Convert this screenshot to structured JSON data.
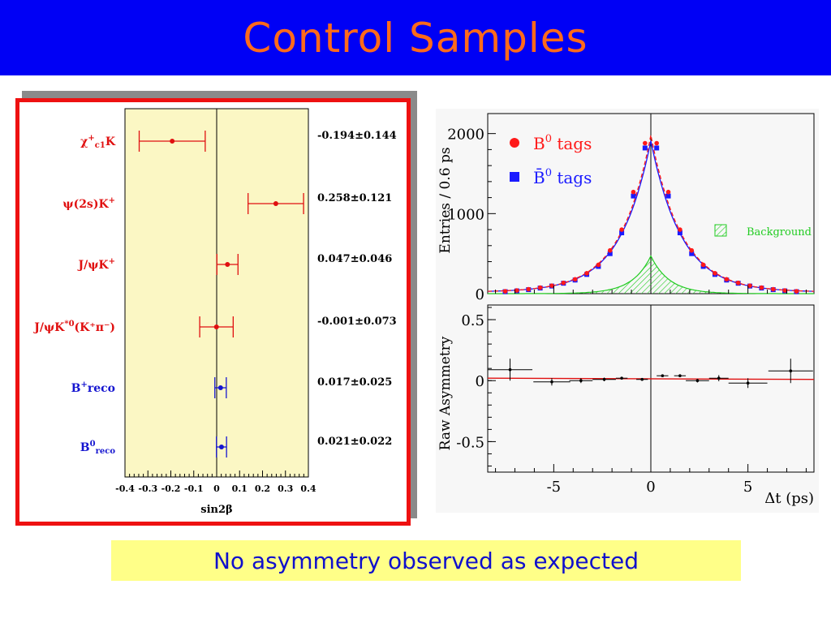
{
  "title": "Control Samples",
  "caption": "No asymmetry observed as expected",
  "chart_data": [
    {
      "type": "scatter",
      "xlabel": "sin2β",
      "xlim": [
        -0.4,
        0.4
      ],
      "xticks": [
        "-0.4",
        "-0.3",
        "-0.2",
        "-0.1",
        "0",
        "0.1",
        "0.2",
        "0.3",
        "0.4"
      ],
      "colors": {
        "red": "#e01010",
        "blue": "#1515d0",
        "band": "#fbf7c4"
      },
      "rows": [
        {
          "label_main": "χ",
          "label_sub": "c1",
          "label_rest": "K",
          "label_sup": "+",
          "color": "red",
          "value": -0.194,
          "error": 0.144,
          "value_text": "-0.194±0.144"
        },
        {
          "label_main": "ψ(2s)K",
          "label_sub": "",
          "label_rest": "",
          "label_sup": "+",
          "color": "red",
          "value": 0.258,
          "error": 0.121,
          "value_text": "0.258±0.121"
        },
        {
          "label_main": "J/ψK",
          "label_sub": "",
          "label_rest": "",
          "label_sup": "+",
          "color": "red",
          "value": 0.047,
          "error": 0.046,
          "value_text": "0.047±0.046"
        },
        {
          "label_main": "J/ψK",
          "label_sub": "",
          "label_rest": "",
          "label_sup": "*0",
          "label_tail": "(K⁺π⁻)",
          "color": "red",
          "value": -0.001,
          "error": 0.073,
          "value_text": "-0.001±0.073"
        },
        {
          "label_main": "B",
          "label_sub": "",
          "label_rest": "reco",
          "label_sup": "+",
          "color": "blue",
          "value": 0.017,
          "error": 0.025,
          "value_text": "0.017±0.025"
        },
        {
          "label_main": "B",
          "label_sub": "reco",
          "label_rest": "",
          "label_sup": "0",
          "color": "blue",
          "value": 0.021,
          "error": 0.022,
          "value_text": "0.021±0.022"
        }
      ]
    },
    {
      "type": "scatter",
      "ylabel": "Entries / 0.6 ps",
      "ylim": [
        0,
        2250
      ],
      "yticks": [
        "0",
        "1000",
        "2000"
      ],
      "xlim": [
        -8.4,
        8.4
      ],
      "legend": {
        "placement": "top-left",
        "b0": "B",
        "b0_sup": "0",
        "b0_text": "tags",
        "b0bar": "B̄",
        "b0bar_sup": "0",
        "b0bar_text": "tags",
        "background": "Background"
      },
      "x": [
        -7.5,
        -6.9,
        -6.3,
        -5.7,
        -5.1,
        -4.5,
        -3.9,
        -3.3,
        -2.7,
        -2.1,
        -1.5,
        -0.9,
        -0.3,
        0.3,
        0.9,
        1.5,
        2.1,
        2.7,
        3.3,
        3.9,
        4.5,
        5.1,
        5.7,
        6.3,
        6.9,
        7.5
      ],
      "series": [
        {
          "name": "B0 tags",
          "values": [
            30,
            40,
            55,
            75,
            100,
            135,
            180,
            255,
            360,
            540,
            800,
            1270,
            1880,
            1880,
            1270,
            800,
            540,
            360,
            255,
            180,
            135,
            100,
            75,
            55,
            40,
            30
          ]
        },
        {
          "name": "B0bar tags",
          "values": [
            25,
            35,
            50,
            70,
            95,
            130,
            170,
            240,
            340,
            500,
            760,
            1220,
            1820,
            1820,
            1220,
            760,
            500,
            340,
            240,
            170,
            130,
            95,
            70,
            50,
            35,
            25
          ]
        }
      ],
      "colors": {
        "b0": "#ff1a1a",
        "b0bar": "#1a1aff",
        "background": "#22cc22"
      }
    },
    {
      "type": "scatter",
      "ylabel": "Raw Asymmetry",
      "xlabel": "Δt (ps)",
      "ylim": [
        -0.75,
        0.62
      ],
      "yticks": [
        "-0.5",
        "0",
        "0.5"
      ],
      "xticks": [
        "-5",
        "0",
        "5"
      ],
      "xlim": [
        -8.4,
        8.4
      ],
      "points": [
        {
          "x": -7.25,
          "xerr": 1.15,
          "y": 0.09,
          "yerr": 0.09
        },
        {
          "x": -5.1,
          "xerr": 0.95,
          "y": -0.01,
          "yerr": 0.03
        },
        {
          "x": -3.6,
          "xerr": 0.6,
          "y": 0.0,
          "yerr": 0.02
        },
        {
          "x": -2.4,
          "xerr": 0.6,
          "y": 0.01,
          "yerr": 0.015
        },
        {
          "x": -1.5,
          "xerr": 0.3,
          "y": 0.02,
          "yerr": 0.01
        },
        {
          "x": -0.45,
          "xerr": 0.3,
          "y": 0.01,
          "yerr": 0.01
        },
        {
          "x": 0.6,
          "xerr": 0.3,
          "y": 0.04,
          "yerr": 0.01
        },
        {
          "x": 1.5,
          "xerr": 0.3,
          "y": 0.04,
          "yerr": 0.012
        },
        {
          "x": 2.4,
          "xerr": 0.6,
          "y": 0.0,
          "yerr": 0.015
        },
        {
          "x": 3.5,
          "xerr": 0.5,
          "y": 0.02,
          "yerr": 0.025
        },
        {
          "x": 5.0,
          "xerr": 1.0,
          "y": -0.02,
          "yerr": 0.04
        },
        {
          "x": 7.2,
          "xerr": 1.15,
          "y": 0.08,
          "yerr": 0.1
        }
      ],
      "fit": {
        "y_left": 0.02,
        "y_right": 0.01,
        "color": "#e01010"
      }
    }
  ]
}
